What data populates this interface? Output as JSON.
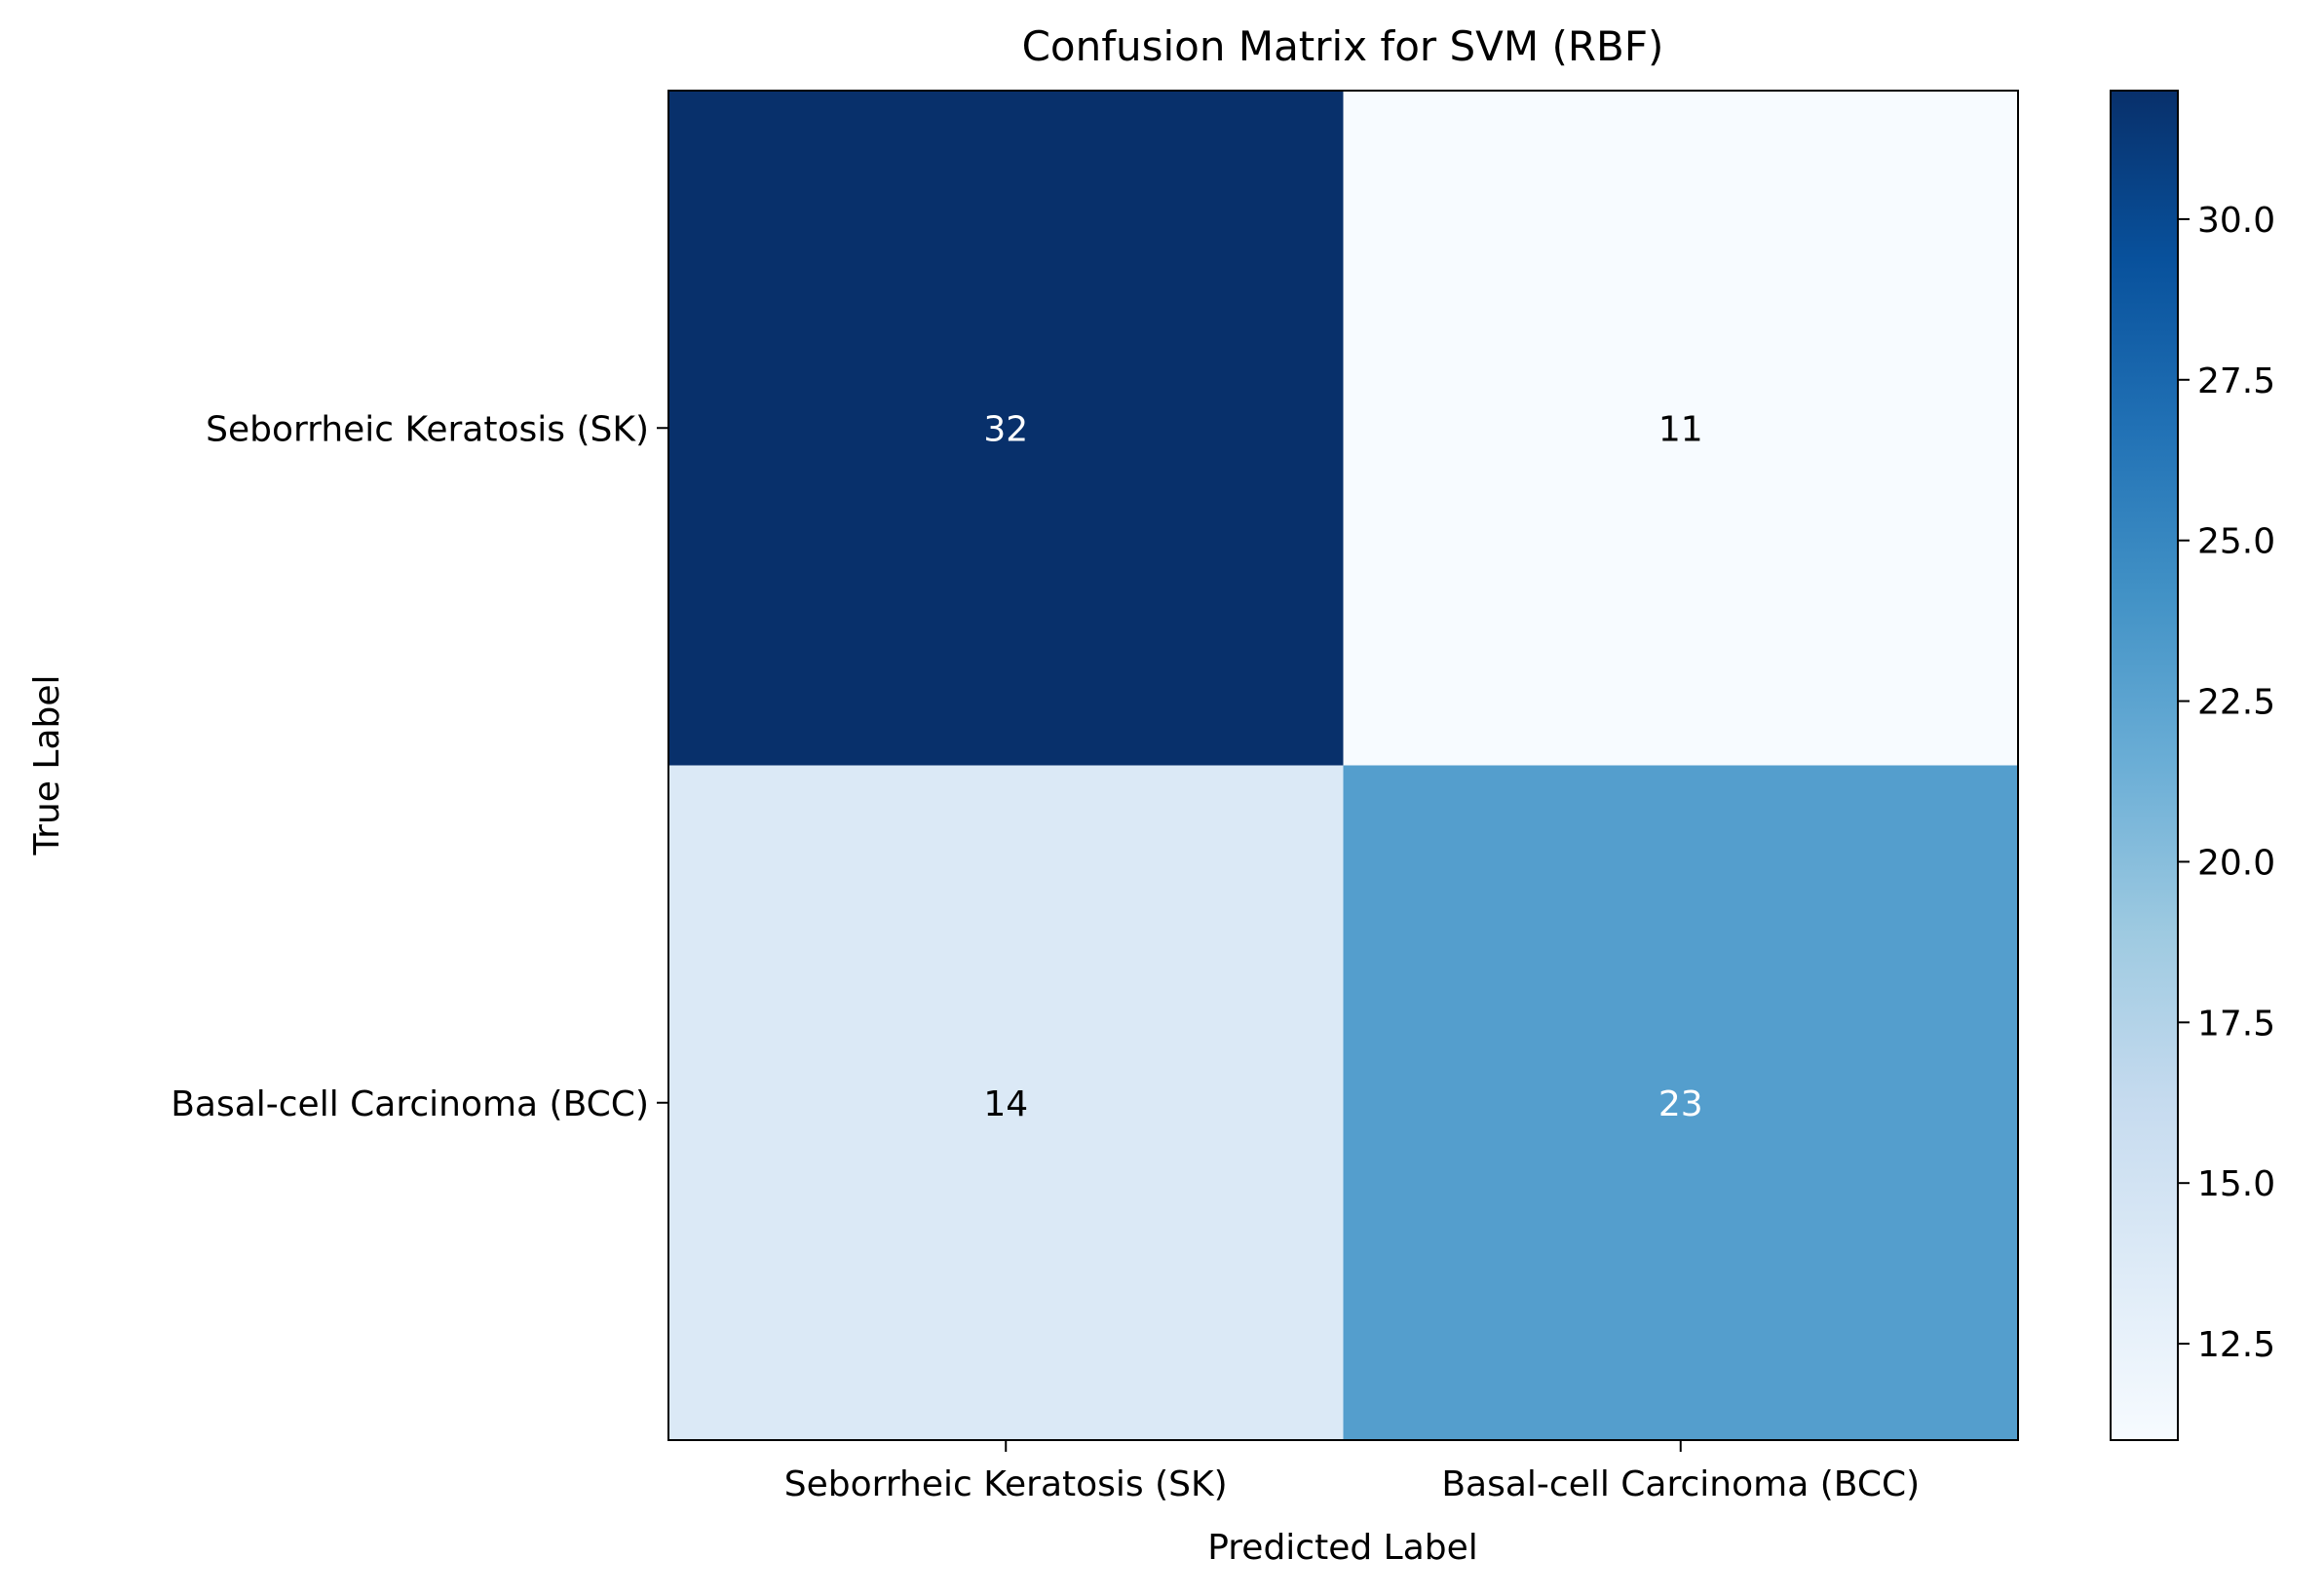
{
  "chart_data": {
    "type": "heatmap",
    "title": "Confusion Matrix for SVM (RBF)",
    "xlabel": "Predicted Label",
    "ylabel": "True Label",
    "x_categories": [
      "Seborrheic Keratosis (SK)",
      "Basal-cell Carcinoma (BCC)"
    ],
    "y_categories": [
      "Seborrheic Keratosis (SK)",
      "Basal-cell Carcinoma (BCC)"
    ],
    "matrix": [
      [
        32,
        11
      ],
      [
        14,
        23
      ]
    ],
    "colormap": "Blues",
    "colorbar": {
      "vmin": 11,
      "vmax": 32,
      "ticks": [
        12.5,
        15.0,
        17.5,
        20.0,
        22.5,
        25.0,
        27.5,
        30.0
      ],
      "tick_labels": [
        "12.5",
        "15.0",
        "17.5",
        "20.0",
        "22.5",
        "25.0",
        "27.5",
        "30.0"
      ]
    },
    "grid": false
  }
}
